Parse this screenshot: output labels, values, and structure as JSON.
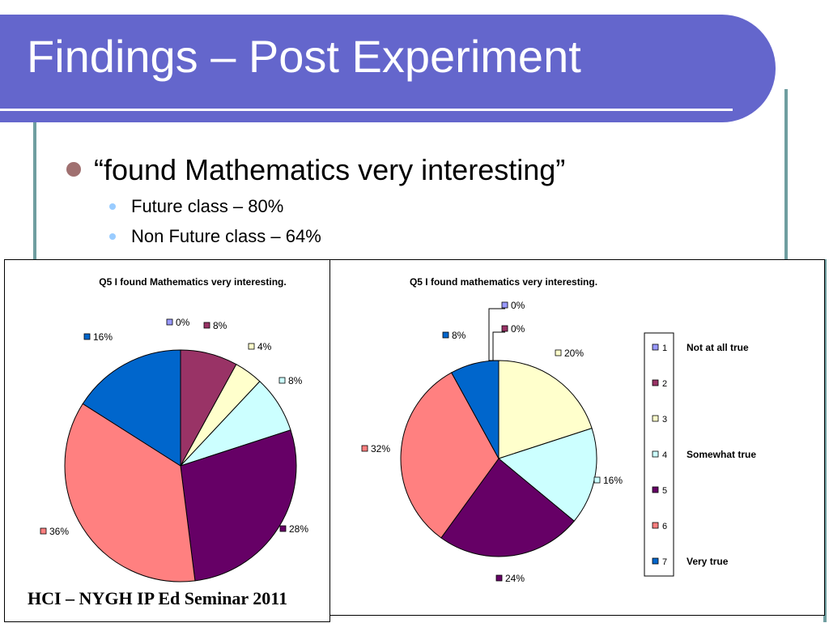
{
  "slide": {
    "title": "Findings – Post Experiment",
    "bullet_main": "“found Mathematics very interesting”",
    "sub_bullets": [
      "Future class – 80%",
      "Non Future class – 64%"
    ],
    "footer": "HCI – NYGH IP Ed Seminar 2011"
  },
  "colors": {
    "title_bar": "#6466cc",
    "frame": "#6f9ea0",
    "bullet_main": "#a07070",
    "bullet_sub": "#99ccff"
  },
  "chart_data": [
    {
      "type": "pie",
      "title": "Q5 I found Mathematics very interesting.",
      "slices": [
        {
          "category": "1",
          "value": 0,
          "label": "0%",
          "color": "#9999ff"
        },
        {
          "category": "2",
          "value": 8,
          "label": "8%",
          "color": "#993366"
        },
        {
          "category": "3",
          "value": 4,
          "label": "4%",
          "color": "#ffffcc"
        },
        {
          "category": "4",
          "value": 8,
          "label": "8%",
          "color": "#ccffff"
        },
        {
          "category": "5",
          "value": 28,
          "label": "28%",
          "color": "#660066"
        },
        {
          "category": "6",
          "value": 36,
          "label": "36%",
          "color": "#ff8080"
        },
        {
          "category": "7",
          "value": 16,
          "label": "16%",
          "color": "#0066cc"
        }
      ]
    },
    {
      "type": "pie",
      "title": "Q5 I found mathematics very interesting.",
      "slices": [
        {
          "category": "1",
          "value": 0,
          "label": "0%",
          "color": "#9999ff"
        },
        {
          "category": "2",
          "value": 0,
          "label": "0%",
          "color": "#993366"
        },
        {
          "category": "3",
          "value": 20,
          "label": "20%",
          "color": "#ffffcc"
        },
        {
          "category": "4",
          "value": 16,
          "label": "16%",
          "color": "#ccffff"
        },
        {
          "category": "5",
          "value": 24,
          "label": "24%",
          "color": "#660066"
        },
        {
          "category": "6",
          "value": 32,
          "label": "32%",
          "color": "#ff8080"
        },
        {
          "category": "7",
          "value": 8,
          "label": "8%",
          "color": "#0066cc"
        }
      ],
      "legend": {
        "entries": [
          "1",
          "2",
          "3",
          "4",
          "5",
          "6",
          "7"
        ],
        "scale_labels": [
          {
            "text": "Not at all true",
            "category": "1"
          },
          {
            "text": "Somewhat true",
            "category": "4"
          },
          {
            "text": "Very true",
            "category": "7"
          }
        ]
      }
    }
  ]
}
